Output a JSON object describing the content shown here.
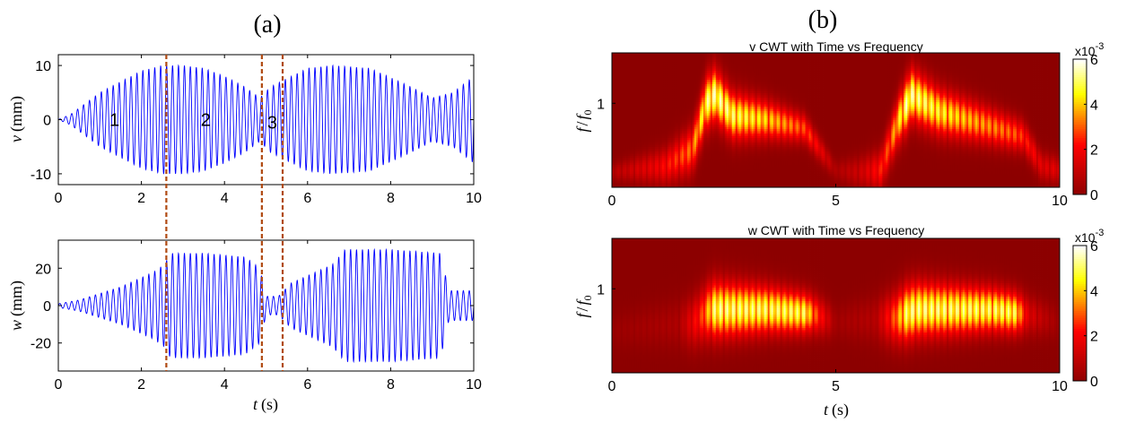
{
  "panel_a": {
    "label": "(a)",
    "regions": [
      "1",
      "2",
      "3"
    ],
    "dashed_line_color": "#b04a12",
    "signal_color": "#0000ff"
  },
  "panel_b": {
    "label": "(b)",
    "colormap": "hot",
    "colorbar": {
      "multiplier": "x10",
      "exponent": "-3",
      "ticks": [
        "0",
        "2",
        "4",
        "6"
      ]
    }
  },
  "chart_data": [
    {
      "type": "line",
      "panel": "a-top",
      "ylabel_var": "v",
      "ylabel_unit": "(mm)",
      "xlim": [
        0,
        10
      ],
      "ylim": [
        -12,
        12
      ],
      "xticks": [
        0,
        2,
        4,
        6,
        8,
        10
      ],
      "yticks": [
        -10,
        0,
        10
      ],
      "frequency_hz": 7,
      "envelope": [
        [
          0,
          0
        ],
        [
          0.3,
          1
        ],
        [
          1,
          5
        ],
        [
          2,
          9
        ],
        [
          2.5,
          10
        ],
        [
          3,
          10
        ],
        [
          3.5,
          9.5
        ],
        [
          4,
          8
        ],
        [
          4.5,
          6
        ],
        [
          4.85,
          4
        ],
        [
          5.1,
          6
        ],
        [
          5.35,
          7
        ],
        [
          6,
          9.5
        ],
        [
          6.6,
          10
        ],
        [
          7.5,
          9.5
        ],
        [
          8.5,
          6
        ],
        [
          9,
          4
        ],
        [
          9.5,
          5
        ],
        [
          10,
          8
        ]
      ],
      "region_labels": [
        {
          "text": "1",
          "x": 1.35,
          "y": 0
        },
        {
          "text": "2",
          "x": 3.55,
          "y": 0
        },
        {
          "text": "3",
          "x": 5.15,
          "y": -0.5
        }
      ],
      "vertical_markers": [
        2.6,
        4.9,
        5.4
      ]
    },
    {
      "type": "line",
      "panel": "a-bottom",
      "ylabel_var": "w",
      "ylabel_unit": "(mm)",
      "xlabel_var": "t",
      "xlabel_unit": "(s)",
      "xlim": [
        0,
        10
      ],
      "ylim": [
        -35,
        35
      ],
      "xticks": [
        0,
        2,
        4,
        6,
        8,
        10
      ],
      "yticks": [
        -20,
        0,
        20
      ],
      "frequency_hz": 7,
      "envelope": [
        [
          0,
          1
        ],
        [
          0.5,
          3
        ],
        [
          1.5,
          10
        ],
        [
          2.3,
          18
        ],
        [
          2.55,
          22
        ],
        [
          2.7,
          28
        ],
        [
          3.5,
          28
        ],
        [
          4.5,
          26
        ],
        [
          4.85,
          20
        ],
        [
          5.0,
          5
        ],
        [
          5.3,
          5
        ],
        [
          5.6,
          12
        ],
        [
          6.2,
          18
        ],
        [
          6.6,
          22
        ],
        [
          6.9,
          30
        ],
        [
          8,
          30
        ],
        [
          9.2,
          28
        ],
        [
          9.4,
          8
        ],
        [
          10,
          8
        ]
      ],
      "vertical_markers": [
        2.6,
        4.9,
        5.4
      ]
    },
    {
      "type": "heatmap",
      "panel": "b-top",
      "title": "v CWT with Time vs Frequency",
      "ylabel_var": "f",
      "ylabel_sub": "0",
      "xlim": [
        0,
        10
      ],
      "xticks": [
        0,
        5,
        10
      ],
      "yticks": [
        1
      ],
      "ylim": [
        0,
        1.6
      ],
      "clim": [
        0,
        6
      ],
      "peak_freq": [
        [
          0,
          0.18
        ],
        [
          1.2,
          0.25
        ],
        [
          1.8,
          0.45
        ],
        [
          2.1,
          1.0
        ],
        [
          2.3,
          1.1
        ],
        [
          2.7,
          0.85
        ],
        [
          3.5,
          0.8
        ],
        [
          4.3,
          0.7
        ],
        [
          5.0,
          0.2
        ],
        [
          5.5,
          0.18
        ],
        [
          6.0,
          0.2
        ],
        [
          6.4,
          0.8
        ],
        [
          6.7,
          1.1
        ],
        [
          7.3,
          0.9
        ],
        [
          8.3,
          0.75
        ],
        [
          9.2,
          0.6
        ],
        [
          9.6,
          0.25
        ],
        [
          10,
          0.2
        ]
      ],
      "intensity": [
        [
          0,
          0.15
        ],
        [
          1.0,
          0.35
        ],
        [
          1.8,
          0.6
        ],
        [
          2.2,
          1.0
        ],
        [
          2.5,
          0.95
        ],
        [
          3.5,
          0.75
        ],
        [
          4.4,
          0.5
        ],
        [
          5.0,
          0.12
        ],
        [
          5.6,
          0.25
        ],
        [
          6.2,
          0.55
        ],
        [
          6.6,
          1.0
        ],
        [
          7.0,
          0.9
        ],
        [
          8.0,
          0.7
        ],
        [
          9.0,
          0.55
        ],
        [
          9.6,
          0.3
        ],
        [
          10,
          0.3
        ]
      ],
      "band_width": [
        [
          0,
          0.1
        ],
        [
          2.2,
          0.3
        ],
        [
          5,
          0.12
        ],
        [
          6.6,
          0.3
        ],
        [
          10,
          0.15
        ]
      ]
    },
    {
      "type": "heatmap",
      "panel": "b-bottom",
      "title": "w CWT with Time vs Frequency",
      "ylabel_var": "f",
      "ylabel_sub": "0",
      "xlabel_var": "t",
      "xlabel_unit": "(s)",
      "xlim": [
        0,
        10
      ],
      "xticks": [
        0,
        5,
        10
      ],
      "yticks": [
        1
      ],
      "ylim": [
        0,
        1.6
      ],
      "clim": [
        0,
        6
      ],
      "peak_freq": [
        [
          0,
          0.5
        ],
        [
          1.8,
          0.6
        ],
        [
          2.2,
          0.75
        ],
        [
          3.5,
          0.75
        ],
        [
          4.5,
          0.7
        ],
        [
          5.0,
          0.6
        ],
        [
          6.3,
          0.65
        ],
        [
          6.8,
          0.75
        ],
        [
          8.5,
          0.75
        ],
        [
          9.2,
          0.7
        ],
        [
          10,
          0.6
        ]
      ],
      "intensity": [
        [
          0,
          0.05
        ],
        [
          1.5,
          0.12
        ],
        [
          2.0,
          0.5
        ],
        [
          2.3,
          0.95
        ],
        [
          4.3,
          0.9
        ],
        [
          4.6,
          0.5
        ],
        [
          5.0,
          0.08
        ],
        [
          5.9,
          0.15
        ],
        [
          6.3,
          0.55
        ],
        [
          6.6,
          0.95
        ],
        [
          9.0,
          0.9
        ],
        [
          9.3,
          0.3
        ],
        [
          10,
          0.05
        ]
      ],
      "band_width": [
        [
          0,
          0.2
        ],
        [
          2.3,
          0.32
        ],
        [
          5,
          0.2
        ],
        [
          6.6,
          0.32
        ],
        [
          10,
          0.2
        ]
      ]
    }
  ]
}
